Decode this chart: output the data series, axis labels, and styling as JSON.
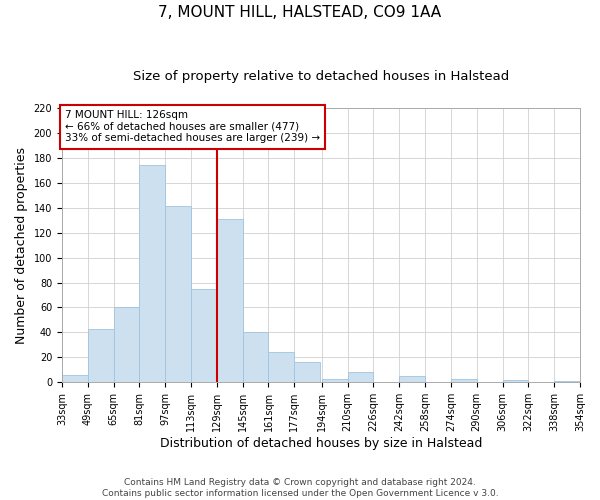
{
  "title": "7, MOUNT HILL, HALSTEAD, CO9 1AA",
  "subtitle": "Size of property relative to detached houses in Halstead",
  "xlabel": "Distribution of detached houses by size in Halstead",
  "ylabel": "Number of detached properties",
  "footer_line1": "Contains HM Land Registry data © Crown copyright and database right 2024.",
  "footer_line2": "Contains public sector information licensed under the Open Government Licence v 3.0.",
  "bar_left_edges": [
    33,
    49,
    65,
    81,
    97,
    113,
    129,
    145,
    161,
    177,
    194,
    210,
    226,
    242,
    258,
    274,
    290,
    306,
    322,
    338
  ],
  "bar_widths": [
    16,
    16,
    16,
    16,
    16,
    16,
    16,
    16,
    16,
    16,
    16,
    16,
    16,
    16,
    16,
    16,
    16,
    16,
    16,
    16
  ],
  "bar_heights": [
    6,
    43,
    60,
    174,
    141,
    75,
    131,
    40,
    24,
    16,
    3,
    8,
    0,
    5,
    0,
    3,
    0,
    2,
    0,
    1
  ],
  "bar_color": "#cce0f0",
  "bar_edgecolor": "#a0c4df",
  "grid_color": "#d0d0d0",
  "vline_x": 129,
  "vline_color": "#cc0000",
  "annotation_text": "7 MOUNT HILL: 126sqm\n← 66% of detached houses are smaller (477)\n33% of semi-detached houses are larger (239) →",
  "annotation_box_color": "#cc0000",
  "annotation_bg_color": "#ffffff",
  "xlim": [
    33,
    354
  ],
  "ylim": [
    0,
    220
  ],
  "yticks": [
    0,
    20,
    40,
    60,
    80,
    100,
    120,
    140,
    160,
    180,
    200,
    220
  ],
  "xtick_labels": [
    "33sqm",
    "49sqm",
    "65sqm",
    "81sqm",
    "97sqm",
    "113sqm",
    "129sqm",
    "145sqm",
    "161sqm",
    "177sqm",
    "194sqm",
    "210sqm",
    "226sqm",
    "242sqm",
    "258sqm",
    "274sqm",
    "290sqm",
    "306sqm",
    "322sqm",
    "338sqm",
    "354sqm"
  ],
  "xtick_positions": [
    33,
    49,
    65,
    81,
    97,
    113,
    129,
    145,
    161,
    177,
    194,
    210,
    226,
    242,
    258,
    274,
    290,
    306,
    322,
    338,
    354
  ],
  "background_color": "#ffffff",
  "title_fontsize": 11,
  "subtitle_fontsize": 9.5,
  "axis_label_fontsize": 9,
  "tick_fontsize": 7,
  "footer_fontsize": 6.5,
  "annotation_fontsize": 7.5
}
